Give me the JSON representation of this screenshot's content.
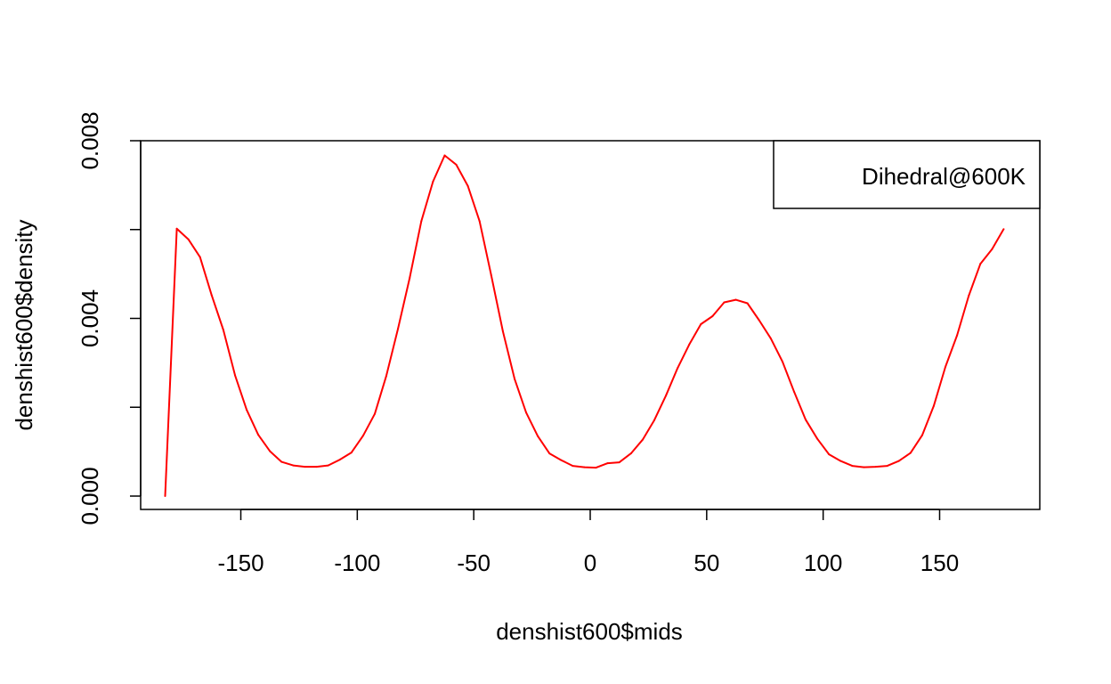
{
  "chart_data": {
    "type": "line",
    "title": "",
    "xlabel": "denshist600$mids",
    "ylabel": "denshist600$density",
    "xlim": [
      -193,
      193
    ],
    "ylim": [
      0,
      0.008
    ],
    "x_ticks": [
      -150,
      -100,
      -50,
      0,
      50,
      100,
      150
    ],
    "x_tick_labels": [
      "-150",
      "-100",
      "-50",
      "0",
      "50",
      "100",
      "150"
    ],
    "y_ticks": [
      0,
      0.002,
      0.004,
      0.006,
      0.008
    ],
    "y_tick_labels": [
      "0.000",
      "",
      "0.004",
      "",
      "0.008"
    ],
    "grid": false,
    "legend_position": "top-right",
    "series": [
      {
        "name": "Dihedral@600K",
        "color": "#ff0000",
        "x": [
          -182.5,
          -177.5,
          -172.5,
          -167.5,
          -162.5,
          -157.5,
          -152.5,
          -147.5,
          -142.5,
          -137.5,
          -132.5,
          -127.5,
          -122.5,
          -117.5,
          -112.5,
          -107.5,
          -102.5,
          -97.5,
          -92.5,
          -87.5,
          -82.5,
          -77.5,
          -72.5,
          -67.5,
          -62.5,
          -57.5,
          -52.5,
          -47.5,
          -42.5,
          -37.5,
          -32.5,
          -27.5,
          -22.5,
          -17.5,
          -12.5,
          -7.5,
          -2.5,
          2.5,
          7.5,
          12.5,
          17.5,
          22.5,
          27.5,
          32.5,
          37.5,
          42.5,
          47.5,
          52.5,
          57.5,
          62.5,
          67.5,
          72.5,
          77.5,
          82.5,
          87.5,
          92.5,
          97.5,
          102.5,
          107.5,
          112.5,
          117.5,
          122.5,
          127.5,
          132.5,
          137.5,
          142.5,
          147.5,
          152.5,
          157.5,
          162.5,
          167.5,
          172.5,
          177.5
        ],
        "values": [
          0.0,
          0.00602,
          0.00578,
          0.00538,
          0.00452,
          0.00374,
          0.00272,
          0.00194,
          0.00138,
          0.00101,
          0.00077,
          0.00069,
          0.00066,
          0.00066,
          0.00069,
          0.00082,
          0.00098,
          0.00136,
          0.00185,
          0.00271,
          0.00377,
          0.00491,
          0.00619,
          0.00708,
          0.00767,
          0.00746,
          0.00698,
          0.00619,
          0.00497,
          0.00371,
          0.00264,
          0.00188,
          0.00135,
          0.00096,
          0.00081,
          0.00068,
          0.00065,
          0.00064,
          0.00074,
          0.00076,
          0.00096,
          0.00127,
          0.00171,
          0.00226,
          0.00288,
          0.00341,
          0.00387,
          0.00405,
          0.00436,
          0.00442,
          0.00434,
          0.00396,
          0.00355,
          0.00303,
          0.00235,
          0.00172,
          0.00129,
          0.00094,
          0.00079,
          0.00068,
          0.00065,
          0.00066,
          0.00068,
          0.00079,
          0.00097,
          0.00137,
          0.00203,
          0.00291,
          0.00362,
          0.00451,
          0.00523,
          0.00556,
          0.00601
        ]
      }
    ]
  }
}
